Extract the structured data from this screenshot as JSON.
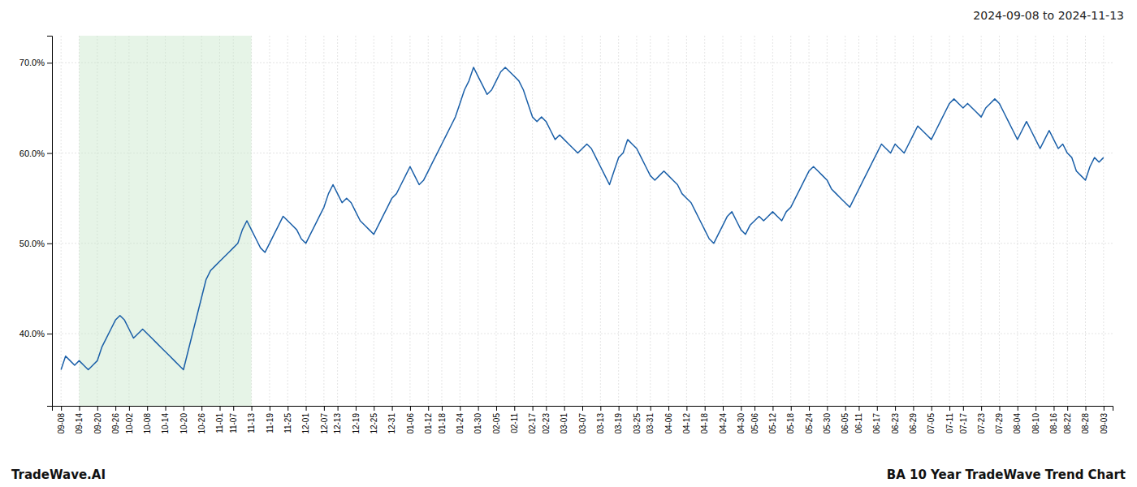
{
  "chart_data": {
    "type": "line",
    "title": "2024-09-08 to 2024-11-13",
    "annotations": [
      "TradeWave.AI",
      "BA 10 Year TradeWave Trend Chart"
    ],
    "color": "#1a5fa8",
    "grid": true,
    "shade": {
      "start": "09-14",
      "end": "11-13",
      "color": "#c8e6c9"
    },
    "ylim": [
      32,
      73
    ],
    "yticks": [
      {
        "value": 40,
        "label": "40.0%"
      },
      {
        "value": 50,
        "label": "50.0%"
      },
      {
        "value": 60,
        "label": "60.0%"
      },
      {
        "value": 70,
        "label": "70.0%"
      }
    ],
    "categories": [
      "09-08",
      null,
      null,
      null,
      "09-14",
      null,
      null,
      null,
      "09-20",
      null,
      null,
      null,
      "09-26",
      null,
      null,
      "10-02",
      null,
      null,
      null,
      "10-08",
      null,
      null,
      null,
      "10-14",
      null,
      null,
      null,
      "10-20",
      null,
      null,
      null,
      "10-26",
      null,
      null,
      null,
      "11-01",
      null,
      null,
      "11-07",
      null,
      null,
      null,
      "11-13",
      null,
      null,
      null,
      "11-19",
      null,
      null,
      null,
      "11-25",
      null,
      null,
      null,
      "12-01",
      null,
      null,
      null,
      "12-07",
      null,
      null,
      "12-13",
      null,
      null,
      null,
      "12-19",
      null,
      null,
      null,
      "12-25",
      null,
      null,
      null,
      "12-31",
      null,
      null,
      null,
      "01-06",
      null,
      null,
      null,
      "01-12",
      null,
      null,
      "01-18",
      null,
      null,
      null,
      "01-24",
      null,
      null,
      null,
      "01-30",
      null,
      null,
      null,
      "02-05",
      null,
      null,
      null,
      "02-11",
      null,
      null,
      null,
      "02-17",
      null,
      null,
      "02-23",
      null,
      null,
      null,
      "03-01",
      null,
      null,
      null,
      "03-07",
      null,
      null,
      null,
      "03-13",
      null,
      null,
      null,
      "03-19",
      null,
      null,
      null,
      "03-25",
      null,
      null,
      "03-31",
      null,
      null,
      null,
      "04-06",
      null,
      null,
      null,
      "04-12",
      null,
      null,
      null,
      "04-18",
      null,
      null,
      null,
      "04-24",
      null,
      null,
      null,
      "04-30",
      null,
      null,
      "05-06",
      null,
      null,
      null,
      "05-12",
      null,
      null,
      null,
      "05-18",
      null,
      null,
      null,
      "05-24",
      null,
      null,
      null,
      "05-30",
      null,
      null,
      null,
      "06-05",
      null,
      null,
      "06-11",
      null,
      null,
      null,
      "06-17",
      null,
      null,
      null,
      "06-23",
      null,
      null,
      null,
      "06-29",
      null,
      null,
      null,
      "07-05",
      null,
      null,
      null,
      "07-11",
      null,
      null,
      "07-17",
      null,
      null,
      null,
      "07-23",
      null,
      null,
      null,
      "07-29",
      null,
      null,
      null,
      "08-04",
      null,
      null,
      null,
      "08-10",
      null,
      null,
      null,
      "08-16",
      null,
      null,
      "08-22",
      null,
      null,
      null,
      "08-28",
      null,
      null,
      null,
      "09-03"
    ],
    "values": [
      36.0,
      37.5,
      37.0,
      36.5,
      37.0,
      36.5,
      36.0,
      36.5,
      37.0,
      38.5,
      39.5,
      40.5,
      41.5,
      42.0,
      41.5,
      40.5,
      39.5,
      40.0,
      40.5,
      40.0,
      39.5,
      39.0,
      38.5,
      38.0,
      37.5,
      37.0,
      36.5,
      36.0,
      38.0,
      40.0,
      42.0,
      44.0,
      46.0,
      47.0,
      47.5,
      48.0,
      48.5,
      49.0,
      49.5,
      50.0,
      51.5,
      52.5,
      51.5,
      50.5,
      49.5,
      49.0,
      50.0,
      51.0,
      52.0,
      53.0,
      52.5,
      52.0,
      51.5,
      50.5,
      50.0,
      51.0,
      52.0,
      53.0,
      54.0,
      55.5,
      56.5,
      55.5,
      54.5,
      55.0,
      54.5,
      53.5,
      52.5,
      52.0,
      51.5,
      51.0,
      52.0,
      53.0,
      54.0,
      55.0,
      55.5,
      56.5,
      57.5,
      58.5,
      57.5,
      56.5,
      57.0,
      58.0,
      59.0,
      60.0,
      61.0,
      62.0,
      63.0,
      64.0,
      65.5,
      67.0,
      68.0,
      69.5,
      68.5,
      67.5,
      66.5,
      67.0,
      68.0,
      69.0,
      69.5,
      69.0,
      68.5,
      68.0,
      67.0,
      65.5,
      64.0,
      63.5,
      64.0,
      63.5,
      62.5,
      61.5,
      62.0,
      61.5,
      61.0,
      60.5,
      60.0,
      60.5,
      61.0,
      60.5,
      59.5,
      58.5,
      57.5,
      56.5,
      58.0,
      59.5,
      60.0,
      61.5,
      61.0,
      60.5,
      59.5,
      58.5,
      57.5,
      57.0,
      57.5,
      58.0,
      57.5,
      57.0,
      56.5,
      55.5,
      55.0,
      54.5,
      53.5,
      52.5,
      51.5,
      50.5,
      50.0,
      51.0,
      52.0,
      53.0,
      53.5,
      52.5,
      51.5,
      51.0,
      52.0,
      52.5,
      53.0,
      52.5,
      53.0,
      53.5,
      53.0,
      52.5,
      53.5,
      54.0,
      55.0,
      56.0,
      57.0,
      58.0,
      58.5,
      58.0,
      57.5,
      57.0,
      56.0,
      55.5,
      55.0,
      54.5,
      54.0,
      55.0,
      56.0,
      57.0,
      58.0,
      59.0,
      60.0,
      61.0,
      60.5,
      60.0,
      61.0,
      60.5,
      60.0,
      61.0,
      62.0,
      63.0,
      62.5,
      62.0,
      61.5,
      62.5,
      63.5,
      64.5,
      65.5,
      66.0,
      65.5,
      65.0,
      65.5,
      65.0,
      64.5,
      64.0,
      65.0,
      65.5,
      66.0,
      65.5,
      64.5,
      63.5,
      62.5,
      61.5,
      62.5,
      63.5,
      62.5,
      61.5,
      60.5,
      61.5,
      62.5,
      61.5,
      60.5,
      61.0,
      60.0,
      59.5,
      58.0,
      57.5,
      57.0,
      58.5,
      59.5,
      59.0,
      59.5
    ]
  }
}
